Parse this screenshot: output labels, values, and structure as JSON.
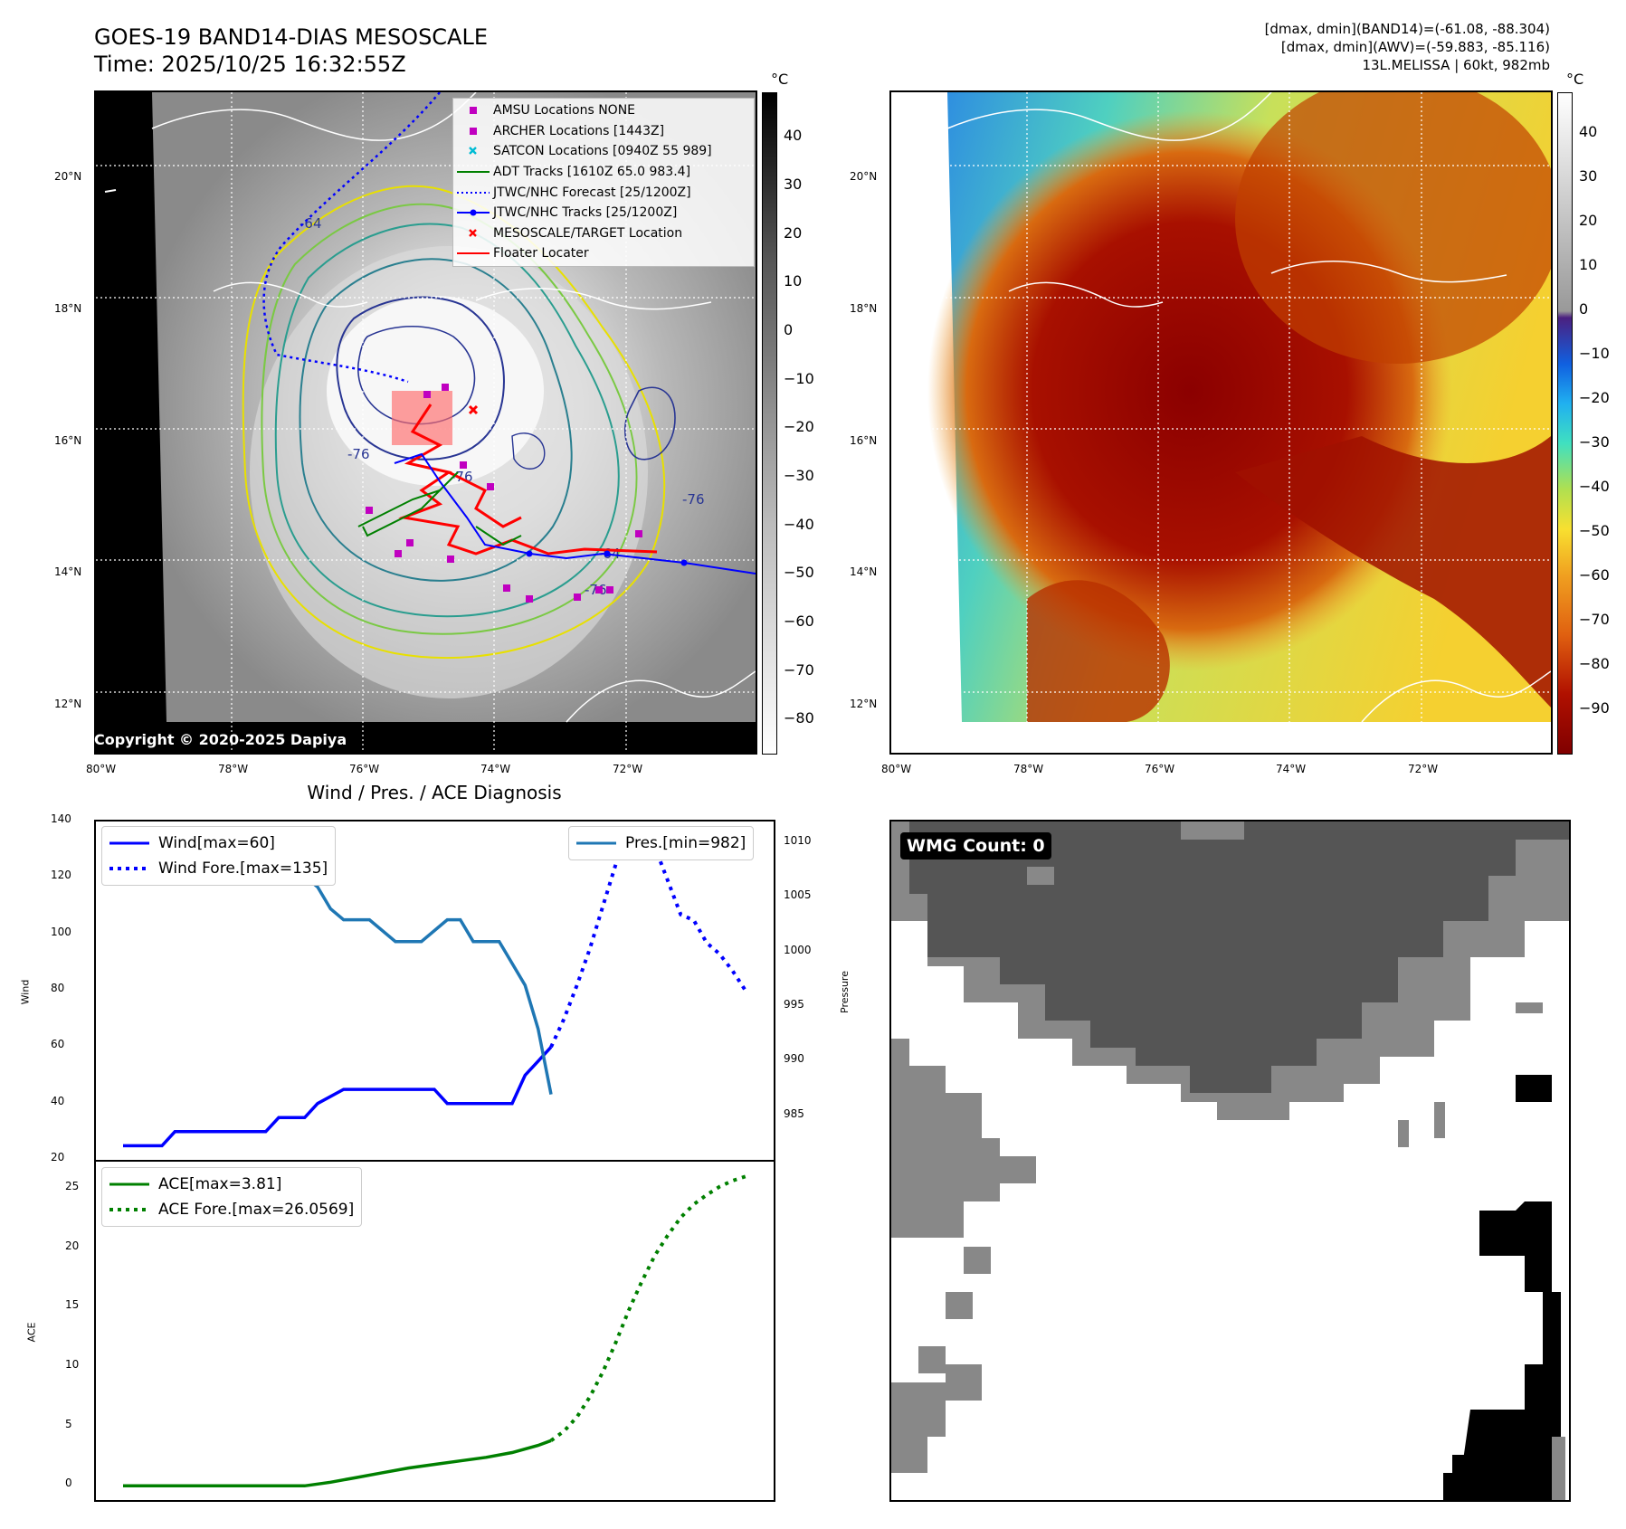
{
  "header": {
    "title_line1": "GOES-19 BAND14-DIAS MESOSCALE",
    "title_line2": "Time: 2025/10/25 16:32:55Z",
    "info_line1": "[dmax, dmin](BAND14)=(-61.08, -88.304)",
    "info_line2": "[dmax, dmin](AWV)=(-59.883, -85.116)",
    "info_line3": "13L.MELISSA | 60kt, 982mb"
  },
  "map": {
    "lat_labels": [
      "20°N",
      "18°N",
      "16°N",
      "14°N",
      "12°N"
    ],
    "lon_labels": [
      "80°W",
      "78°W",
      "76°W",
      "74°W",
      "72°W"
    ],
    "contour_labels": [
      "-76",
      "-76",
      "-64",
      "-76",
      "-64",
      "-76"
    ],
    "copyright": "Copyright © 2020-2025 Dapiya"
  },
  "colorbar_left": {
    "unit": "°C",
    "ticks": [
      "40",
      "30",
      "20",
      "10",
      "0",
      "−10",
      "−20",
      "−30",
      "−40",
      "−50",
      "−60",
      "−70",
      "−80"
    ]
  },
  "colorbar_right": {
    "unit": "°C",
    "ticks": [
      "40",
      "30",
      "20",
      "10",
      "0",
      "−10",
      "−20",
      "−30",
      "−40",
      "−50",
      "−60",
      "−70",
      "−80",
      "−90"
    ]
  },
  "legend": [
    {
      "label": "AMSU Locations NONE",
      "symbol": "square",
      "color": "#c000c0"
    },
    {
      "label": "ARCHER Locations [1443Z]",
      "symbol": "square",
      "color": "#c000c0"
    },
    {
      "label": "SATCON Locations [0940Z 55 989]",
      "symbol": "x",
      "color": "#00bcd4"
    },
    {
      "label": "ADT Tracks [1610Z 65.0 983.4]",
      "symbol": "line",
      "color": "#008000"
    },
    {
      "label": "JTWC/NHC Forecast [25/1200Z]",
      "symbol": "dotted",
      "color": "#0000ff"
    },
    {
      "label": "JTWC/NHC Tracks [25/1200Z]",
      "symbol": "line-dot",
      "color": "#0000ff"
    },
    {
      "label": "MESOSCALE/TARGET Location",
      "symbol": "x",
      "color": "#ff0000"
    },
    {
      "label": "Floater Locater",
      "symbol": "line",
      "color": "#ff0000"
    }
  ],
  "diagnosis": {
    "title": "Wind / Pres. / ACE Diagnosis",
    "wind_axis_label": "Wind",
    "pressure_axis_label": "Pressure",
    "ace_axis_label": "ACE"
  },
  "chart_data": [
    {
      "type": "line",
      "title": "Wind / Pres. / ACE Diagnosis",
      "ylabel": "Wind",
      "ylim": [
        20,
        140
      ],
      "yticks": [
        "140",
        "120",
        "100",
        "80",
        "60",
        "40",
        "20"
      ],
      "y2label": "Pressure",
      "y2lim": [
        981,
        1012
      ],
      "y2ticks": [
        "1010",
        "1005",
        "1000",
        "995",
        "990",
        "985"
      ],
      "legend_left": [
        "Wind[max=60]",
        "Wind Fore.[max=135]"
      ],
      "legend_right": [
        "Pres.[min=982]"
      ],
      "x": [
        0,
        1,
        2,
        3,
        4,
        5,
        6,
        7,
        8,
        9,
        10,
        11,
        12,
        13,
        14,
        15,
        16,
        17,
        18,
        19,
        20,
        21,
        22,
        23,
        24,
        25,
        26,
        27,
        28,
        29,
        30,
        31,
        32,
        33,
        34,
        35,
        36,
        37,
        38,
        39,
        40,
        41,
        42,
        43,
        44,
        45,
        46,
        47,
        48
      ],
      "series": [
        {
          "name": "Wind[max=60]",
          "color": "#0000ff",
          "style": "solid",
          "x": [
            0,
            3,
            4,
            11,
            12,
            14,
            15,
            17,
            18,
            24,
            25,
            30,
            31,
            32,
            33
          ],
          "values": [
            25,
            25,
            30,
            30,
            35,
            35,
            40,
            45,
            45,
            45,
            40,
            40,
            50,
            55,
            60
          ]
        },
        {
          "name": "Wind Fore.[max=135]",
          "color": "#0000ff",
          "style": "dotted",
          "x": [
            33,
            34,
            35,
            36,
            37,
            38,
            39,
            40,
            41,
            42,
            43,
            44,
            45,
            46,
            47,
            48
          ],
          "values": [
            60,
            70,
            82,
            95,
            110,
            125,
            135,
            135,
            131,
            119,
            107,
            105,
            97,
            93,
            87,
            80
          ]
        },
        {
          "name": "Pres.[min=982]",
          "color": "#1f77b4",
          "style": "solid",
          "axis": "right",
          "x": [
            2,
            5,
            8,
            9,
            11,
            13,
            15,
            16,
            17,
            19,
            21,
            23,
            25,
            26,
            27,
            29,
            31,
            32,
            33
          ],
          "values": [
            1010.5,
            1010.5,
            1009.5,
            1009.5,
            1008,
            1008,
            1006,
            1004,
            1003,
            1003,
            1001,
            1001,
            1003,
            1003,
            1001,
            1001,
            997,
            993,
            987
          ]
        }
      ]
    },
    {
      "type": "line",
      "ylabel": "ACE",
      "ylim": [
        -1.2,
        27.3
      ],
      "yticks": [
        "25",
        "20",
        "15",
        "10",
        "5",
        "0"
      ],
      "legend": [
        "ACE[max=3.81]",
        "ACE Fore.[max=26.0569]"
      ],
      "series": [
        {
          "name": "ACE[max=3.81]",
          "color": "#008000",
          "style": "solid",
          "x": [
            0,
            4,
            8,
            12,
            14,
            16,
            18,
            20,
            22,
            24,
            26,
            28,
            30,
            32,
            33
          ],
          "values": [
            0,
            0,
            0,
            0,
            0,
            0.3,
            0.7,
            1.1,
            1.5,
            1.8,
            2.1,
            2.4,
            2.8,
            3.4,
            3.81
          ]
        },
        {
          "name": "ACE Fore.[max=26.0569]",
          "color": "#008000",
          "style": "dotted",
          "x": [
            33,
            34,
            35,
            36,
            37,
            38,
            39,
            40,
            41,
            42,
            43,
            44,
            45,
            46,
            47,
            48
          ],
          "values": [
            3.81,
            4.6,
            5.8,
            7.5,
            9.6,
            12.1,
            14.8,
            17.2,
            19.4,
            21.1,
            22.6,
            23.7,
            24.5,
            25.2,
            25.7,
            26.06
          ]
        }
      ]
    }
  ],
  "wmg": {
    "label": "WMG Count: 0"
  }
}
